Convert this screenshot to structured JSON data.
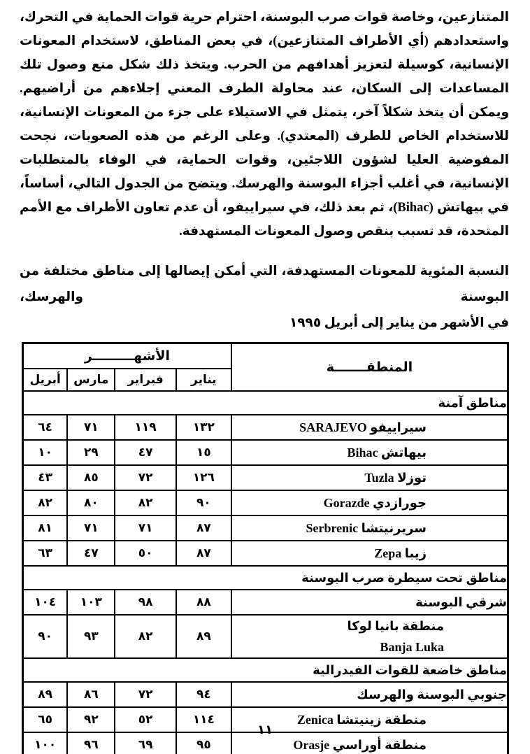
{
  "document": {
    "paragraph": "المتنازعين، وخاصة قوات صرب البوسنة، احترام حرية قوات الحماية في التحرك، واستعدادهم (أي الأطراف المتنازعين)، في بعض المناطق، لاستخدام المعونات الإنسانية، كوسيلة لتعزيز أهدافهم من الحرب. ويتخذ ذلك شكل منع وصول تلك المساعدات إلى السكان، عند محاولة الطرف المعني إجلاءهم من أراضيهم. ويمكن أن يتخذ شكلاً آخر، يتمثل في الاستيلاء على جزء من المعونات الإنسانية، للاستخدام الخاص للطرف (المعتدي). وعلى الرغم من هذه الصعوبات، نجحت المفوضية العليا لشؤون اللاجئين، وقوات الحماية، في الوفاء بالمتطلبات الإنسانية، في أغلب أجزاء البوسنة والهرسك. ويتضح من الجدول التالي، أساساً، في بيهاتش (Bihac)، ثم بعد ذلك، في سيراييفو، أن عدم تعاون الأطراف مع الأمم المتحدة، قد تسبب بنقص وصول المعونات المستهدفة.",
    "caption_line1": "النسبة المئوية للمعونات المستهدفة، التي أمكن إيصالها إلى مناطق مختلفة من البوسنة والهرسك،",
    "caption_line2": "في الأشهر من يناير إلى أبريل ١٩٩٥",
    "page_number": "١١"
  },
  "table": {
    "region_header": "المنطقـــــــة",
    "months_header": "الأشهـــــــــر",
    "month_columns": [
      "يناير",
      "فبراير",
      "مارس",
      "أبريل"
    ],
    "sections": [
      {
        "title": "مناطق آمنة",
        "rows": [
          {
            "region_ar": "سيراييفو",
            "region_latin": "SARAJEVO",
            "values": [
              "١٣٢",
              "١١٩",
              "٧١",
              "٦٤"
            ],
            "values_en": [
              132,
              119,
              71,
              64
            ]
          },
          {
            "region_ar": "بيهاتش",
            "region_latin": "Bihac",
            "values": [
              "١٥",
              "٤٧",
              "٢٩",
              "١٠"
            ],
            "values_en": [
              15,
              47,
              29,
              10
            ]
          },
          {
            "region_ar": "توزلا",
            "region_latin": "Tuzla",
            "values": [
              "١٢٦",
              "٧٢",
              "٨٥",
              "٤٣"
            ],
            "values_en": [
              126,
              72,
              85,
              43
            ]
          },
          {
            "region_ar": "جورازدي",
            "region_latin": "Gorazde",
            "values": [
              "٩٠",
              "٨٢",
              "٨٠",
              "٨٢"
            ],
            "values_en": [
              90,
              82,
              80,
              82
            ]
          },
          {
            "region_ar": "سريرنيتشا",
            "region_latin": "Serbrenic",
            "values": [
              "٨٧",
              "٧١",
              "٧١",
              "٨١"
            ],
            "values_en": [
              87,
              71,
              71,
              81
            ]
          },
          {
            "region_ar": "زيبا",
            "region_latin": "Zepa",
            "values": [
              "٨٧",
              "٥٠",
              "٤٧",
              "٦٣"
            ],
            "values_en": [
              87,
              50,
              47,
              63
            ]
          }
        ]
      },
      {
        "title": "مناطق تحت سيطرة صرب البوسنة",
        "rows": [
          {
            "region_ar": "شرقي البوسنة",
            "region_latin": "",
            "values": [
              "٨٨",
              "٩٨",
              "١٠٣",
              "١٠٤"
            ],
            "values_en": [
              88,
              98,
              103,
              104
            ]
          },
          {
            "region_ar": "منطقة بانيا لوكا",
            "region_latin": "Banja Luka",
            "latin_newline": true,
            "values": [
              "٨٩",
              "٨٢",
              "٩٣",
              "٩٠"
            ],
            "values_en": [
              89,
              82,
              93,
              90
            ]
          }
        ]
      },
      {
        "title": "مناطق خاضعة للقوات الفيدرالية",
        "rows": [
          {
            "region_ar": "جنوبي البوسنة والهرسك",
            "region_latin": "",
            "values": [
              "٩٤",
              "٧٢",
              "٨٦",
              "٨٩"
            ],
            "values_en": [
              94,
              72,
              86,
              89
            ]
          },
          {
            "region_ar": "منطقة زينيتشا",
            "region_latin": "Zenica",
            "values": [
              "١١٤",
              "٥٢",
              "٩٢",
              "٦٥"
            ],
            "values_en": [
              114,
              52,
              92,
              65
            ]
          },
          {
            "region_ar": "منطقة أوراسي",
            "region_latin": "Orasje",
            "values": [
              "٩٥",
              "٦٩",
              "٩٦",
              "١٠٠"
            ],
            "values_en": [
              95,
              69,
              96,
              100
            ]
          }
        ]
      }
    ]
  }
}
